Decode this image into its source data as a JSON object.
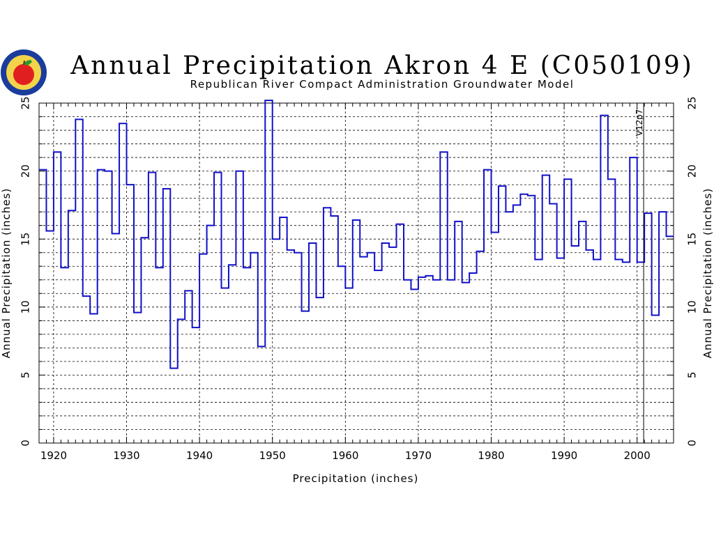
{
  "colors": {
    "series": "#1010c8",
    "axes": "#000000",
    "logo_ring": "#1a3c9c",
    "logo_fill": "#f2d44a",
    "apple": "#e02020",
    "leaf": "#2a9a2a"
  },
  "chart_data": {
    "type": "line",
    "step": true,
    "title": "Annual Precipitation Akron 4 E (C050109)",
    "subtitle": "Republican River Compact Administration Groundwater Model",
    "xlabel": "Precipitation (inches)",
    "ylabel": "Annual Precipitation (inches)",
    "ylabel_right": "Annual Precipitation (inches)",
    "xlim": [
      1918,
      2005
    ],
    "ylim": [
      0,
      25
    ],
    "x_ticks": [
      1920,
      1930,
      1940,
      1950,
      1960,
      1970,
      1980,
      1990,
      2000
    ],
    "y_ticks": [
      0,
      5,
      10,
      15,
      20,
      25
    ],
    "y_minor_step": 1,
    "grid": true,
    "annotation": {
      "x": 2000.9,
      "text": "V12p7"
    },
    "series": [
      {
        "x": [
          1918,
          1919,
          1920,
          1921,
          1922,
          1923,
          1924,
          1925,
          1926,
          1927,
          1928,
          1929,
          1930,
          1931,
          1932,
          1933,
          1934,
          1935,
          1936,
          1937,
          1938,
          1939,
          1940,
          1941,
          1942,
          1943,
          1944,
          1945,
          1946,
          1947,
          1948,
          1949,
          1950,
          1951,
          1952,
          1953,
          1954,
          1955,
          1956,
          1957,
          1958,
          1959,
          1960,
          1961,
          1962,
          1963,
          1964,
          1965,
          1966,
          1967,
          1968,
          1969,
          1970,
          1971,
          1972,
          1973,
          1974,
          1975,
          1976,
          1977,
          1978,
          1979,
          1980,
          1981,
          1982,
          1983,
          1984,
          1985,
          1986,
          1987,
          1988,
          1989,
          1990,
          1991,
          1992,
          1993,
          1994,
          1995,
          1996,
          1997,
          1998,
          1999,
          2000,
          2001,
          2002,
          2003,
          2004
        ],
        "values": [
          20.1,
          15.6,
          21.4,
          12.9,
          17.1,
          23.8,
          10.8,
          9.5,
          20.1,
          20.0,
          15.4,
          23.5,
          19.0,
          9.6,
          15.1,
          19.9,
          12.9,
          18.7,
          5.5,
          9.1,
          11.2,
          8.5,
          13.9,
          16.0,
          19.9,
          11.4,
          13.1,
          20.0,
          12.9,
          14.0,
          7.1,
          25.2,
          15.0,
          16.6,
          14.2,
          14.0,
          9.7,
          14.7,
          10.7,
          17.3,
          16.7,
          13.0,
          11.4,
          16.4,
          13.7,
          14.0,
          12.7,
          14.7,
          14.4,
          16.1,
          12.0,
          11.3,
          12.2,
          12.3,
          12.0,
          21.4,
          12.0,
          16.3,
          11.8,
          12.5,
          14.1,
          20.1,
          15.5,
          18.9,
          17.0,
          17.5,
          18.3,
          18.2,
          13.5,
          19.7,
          17.6,
          13.6,
          19.4,
          14.5,
          16.3,
          14.2,
          13.5,
          24.1,
          19.4,
          13.5,
          13.3,
          21.0,
          13.3,
          16.9,
          9.4,
          17.0,
          15.2
        ]
      }
    ]
  }
}
